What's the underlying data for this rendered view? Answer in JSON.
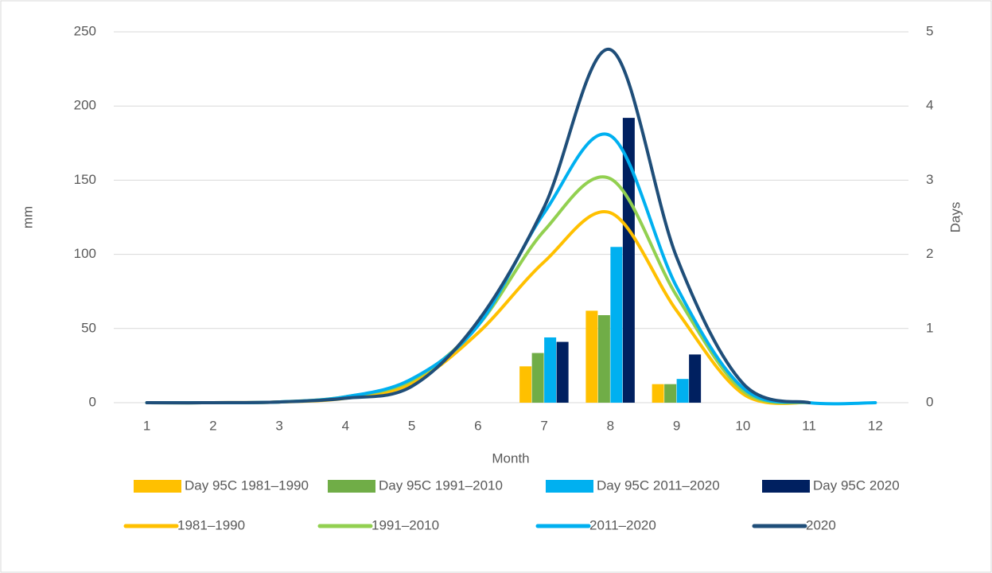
{
  "chart_data": {
    "type": "combo",
    "categories": [
      "1",
      "2",
      "3",
      "4",
      "5",
      "6",
      "7",
      "8",
      "9",
      "10",
      "11",
      "12"
    ],
    "x_label": "Month",
    "y_label": "mm",
    "y2_label": "Days",
    "ylim": [
      0,
      250
    ],
    "yticks": [
      0,
      50,
      100,
      150,
      200,
      250
    ],
    "y2lim": [
      0,
      5
    ],
    "y2ticks": [
      0,
      1,
      2,
      3,
      4,
      5
    ],
    "grid": true,
    "legend": "bottom",
    "series": [
      {
        "name": "Day 95C 1981–1990",
        "type": "bar",
        "axis": "y2",
        "color": "#ffc000",
        "values": [
          null,
          null,
          null,
          null,
          null,
          null,
          0.49,
          1.24,
          0.25,
          null,
          null,
          null
        ]
      },
      {
        "name": "Day 95C 1991–2010",
        "type": "bar",
        "axis": "y2",
        "color": "#70ad47",
        "values": [
          null,
          null,
          null,
          null,
          null,
          null,
          0.67,
          1.18,
          0.25,
          null,
          null,
          null
        ]
      },
      {
        "name": "Day 95C 2011–2020",
        "type": "bar",
        "axis": "y2",
        "color": "#00b0f0",
        "values": [
          null,
          null,
          null,
          null,
          null,
          null,
          0.88,
          2.1,
          0.32,
          null,
          null,
          null
        ]
      },
      {
        "name": "Day 95C 2020",
        "type": "bar",
        "axis": "y2",
        "color": "#002060",
        "values": [
          null,
          null,
          null,
          null,
          null,
          null,
          0.82,
          3.84,
          0.65,
          null,
          null,
          null
        ]
      },
      {
        "name": "1981–1990",
        "type": "line",
        "color": "#ffc000",
        "values": [
          0,
          0,
          0.5,
          3,
          13,
          47,
          95,
          128,
          62,
          6,
          0,
          null
        ]
      },
      {
        "name": "1991–2010",
        "type": "line",
        "color": "#92d050",
        "values": [
          0,
          0,
          0.5,
          4,
          15,
          52,
          116,
          151,
          72,
          8,
          0,
          null
        ]
      },
      {
        "name": "2011–2020",
        "type": "line",
        "color": "#00b0f0",
        "values": [
          0,
          0,
          0.5,
          4,
          16,
          52,
          128,
          180,
          78,
          10,
          0,
          0
        ]
      },
      {
        "name": "2020",
        "type": "line",
        "color": "#1f4e79",
        "values": [
          0,
          0,
          0.5,
          3,
          11,
          55,
          132,
          238,
          98,
          13,
          0,
          null
        ]
      }
    ]
  }
}
